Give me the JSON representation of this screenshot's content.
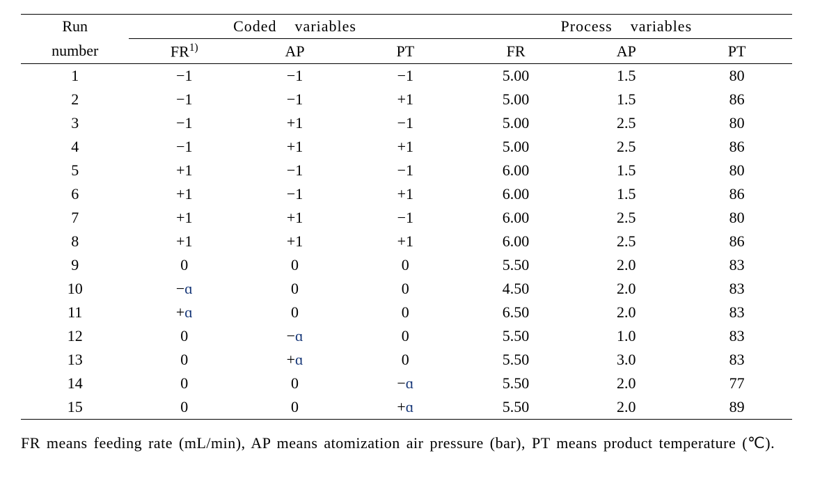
{
  "table": {
    "header": {
      "run_label_line1": "Run",
      "run_label_line2": "number",
      "group_coded": "Coded    variables",
      "group_process": "Process    variables",
      "sub_coded_fr": "FR",
      "sub_coded_fr_sup": "1)",
      "sub_coded_ap": "AP",
      "sub_coded_pt": "PT",
      "sub_proc_fr": "FR",
      "sub_proc_ap": "AP",
      "sub_proc_pt": "PT"
    },
    "rows": [
      {
        "run": "1",
        "c_fr": "−1",
        "c_ap": "−1",
        "c_pt": "−1",
        "p_fr": "5.00",
        "p_ap": "1.5",
        "p_pt": "80"
      },
      {
        "run": "2",
        "c_fr": "−1",
        "c_ap": "−1",
        "c_pt": "+1",
        "p_fr": "5.00",
        "p_ap": "1.5",
        "p_pt": "86"
      },
      {
        "run": "3",
        "c_fr": "−1",
        "c_ap": "+1",
        "c_pt": "−1",
        "p_fr": "5.00",
        "p_ap": "2.5",
        "p_pt": "80"
      },
      {
        "run": "4",
        "c_fr": "−1",
        "c_ap": "+1",
        "c_pt": "+1",
        "p_fr": "5.00",
        "p_ap": "2.5",
        "p_pt": "86"
      },
      {
        "run": "5",
        "c_fr": "+1",
        "c_ap": "−1",
        "c_pt": "−1",
        "p_fr": "6.00",
        "p_ap": "1.5",
        "p_pt": "80"
      },
      {
        "run": "6",
        "c_fr": "+1",
        "c_ap": "−1",
        "c_pt": "+1",
        "p_fr": "6.00",
        "p_ap": "1.5",
        "p_pt": "86"
      },
      {
        "run": "7",
        "c_fr": "+1",
        "c_ap": "+1",
        "c_pt": "−1",
        "p_fr": "6.00",
        "p_ap": "2.5",
        "p_pt": "80"
      },
      {
        "run": "8",
        "c_fr": "+1",
        "c_ap": "+1",
        "c_pt": "+1",
        "p_fr": "6.00",
        "p_ap": "2.5",
        "p_pt": "86"
      },
      {
        "run": "9",
        "c_fr": "0",
        "c_ap": "0",
        "c_pt": "0",
        "p_fr": "5.50",
        "p_ap": "2.0",
        "p_pt": "83"
      },
      {
        "run": "10",
        "c_fr": "−ɑ",
        "c_ap": "0",
        "c_pt": "0",
        "p_fr": "4.50",
        "p_ap": "2.0",
        "p_pt": "83"
      },
      {
        "run": "11",
        "c_fr": "+ɑ",
        "c_ap": "0",
        "c_pt": "0",
        "p_fr": "6.50",
        "p_ap": "2.0",
        "p_pt": "83"
      },
      {
        "run": "12",
        "c_fr": "0",
        "c_ap": "−ɑ",
        "c_pt": "0",
        "p_fr": "5.50",
        "p_ap": "1.0",
        "p_pt": "83"
      },
      {
        "run": "13",
        "c_fr": "0",
        "c_ap": "+ɑ",
        "c_pt": "0",
        "p_fr": "5.50",
        "p_ap": "3.0",
        "p_pt": "83"
      },
      {
        "run": "14",
        "c_fr": "0",
        "c_ap": "0",
        "c_pt": "−ɑ",
        "p_fr": "5.50",
        "p_ap": "2.0",
        "p_pt": "77"
      },
      {
        "run": "15",
        "c_fr": "0",
        "c_ap": "0",
        "c_pt": "+ɑ",
        "p_fr": "5.50",
        "p_ap": "2.0",
        "p_pt": "89"
      }
    ],
    "footnote": "FR means feeding rate (mL/min), AP means atomization air pressure (bar), PT means product temperature (℃)."
  },
  "styling": {
    "text_color": "#000000",
    "alpha_color": "#1a3a7a",
    "background_color": "#ffffff",
    "font_family": "Times New Roman",
    "base_fontsize_pt": 16,
    "border_color": "#000000",
    "column_widths_percent": {
      "run": 14,
      "coded_each": 14.3,
      "process_each": 14.3
    }
  }
}
